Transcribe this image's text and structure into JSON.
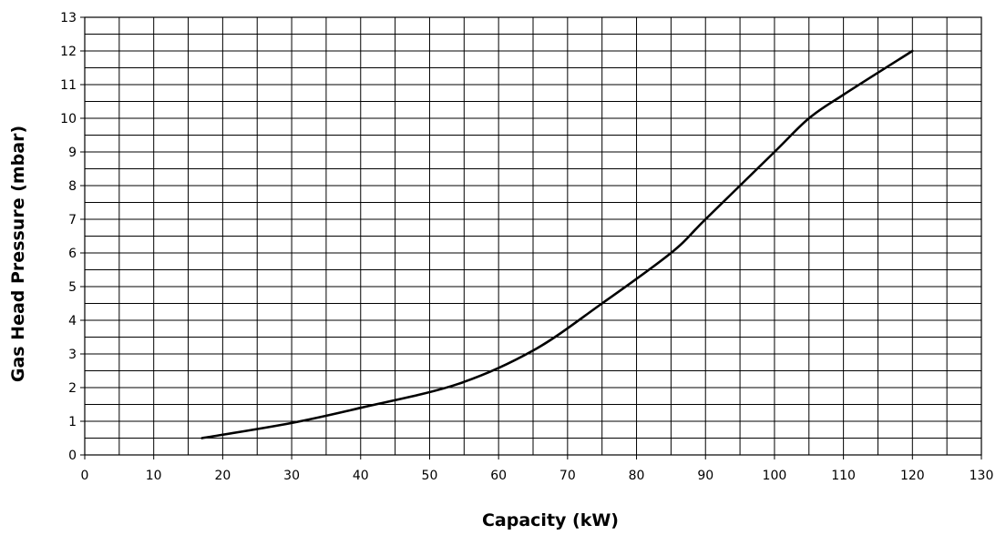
{
  "chart_data": {
    "type": "line",
    "xlabel": "Capacity (kW)",
    "ylabel": "Gas Head Pressure (mbar)",
    "xlim": [
      0,
      130
    ],
    "ylim": [
      0,
      13
    ],
    "x_ticks": [
      "0",
      "10",
      "20",
      "30",
      "40",
      "50",
      "60",
      "70",
      "80",
      "90",
      "100",
      "110",
      "120",
      "130"
    ],
    "y_ticks": [
      "0",
      "1",
      "2",
      "3",
      "4",
      "5",
      "6",
      "7",
      "8",
      "9",
      "10",
      "11",
      "12",
      "13"
    ],
    "x_gridline_step": 5,
    "y_gridline_step": 0.5,
    "grid": true,
    "legend": "none",
    "line_color": "#000000",
    "grid_color": "#000000",
    "series": [
      {
        "x": [
          17,
          30,
          40,
          54,
          65,
          75,
          85,
          90,
          100,
          105,
          110,
          120
        ],
        "y": [
          0.5,
          0.95,
          1.4,
          2.1,
          3.1,
          4.5,
          6.0,
          7.0,
          9.0,
          10.0,
          10.7,
          12.0
        ]
      }
    ]
  }
}
